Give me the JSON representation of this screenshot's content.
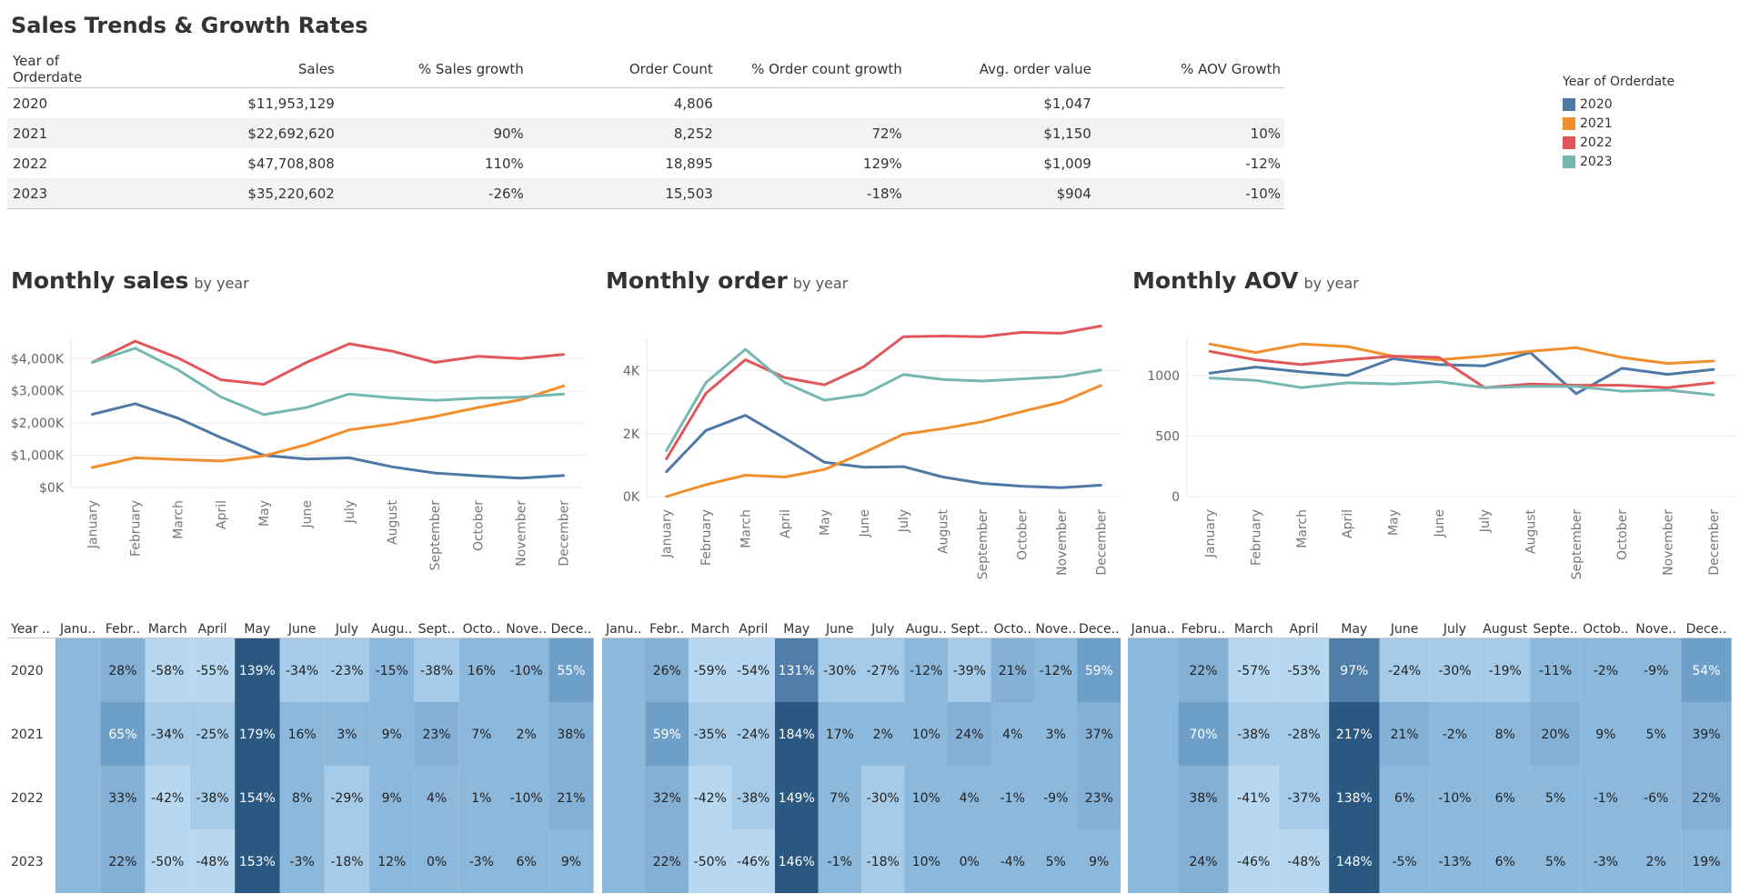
{
  "title": "Sales Trends & Growth Rates",
  "table": {
    "columns": [
      "Year of Orderdate",
      "Sales",
      "% Sales growth",
      "Order Count",
      "% Order count growth",
      "Avg. order value",
      "% AOV Growth"
    ],
    "rows": [
      [
        "2020",
        "$11,953,129",
        "",
        "4,806",
        "",
        "$1,047",
        ""
      ],
      [
        "2021",
        "$22,692,620",
        "90%",
        "8,252",
        "72%",
        "$1,150",
        "10%"
      ],
      [
        "2022",
        "$47,708,808",
        "110%",
        "18,895",
        "129%",
        "$1,009",
        "-12%"
      ],
      [
        "2023",
        "$35,220,602",
        "-26%",
        "15,503",
        "-18%",
        "$904",
        "-10%"
      ]
    ]
  },
  "legend": {
    "title": "Year of Orderdate",
    "items": [
      {
        "label": "2020",
        "color": "#4e79a7"
      },
      {
        "label": "2021",
        "color": "#f28e2b"
      },
      {
        "label": "2022",
        "color": "#e15759"
      },
      {
        "label": "2023",
        "color": "#76b7b2"
      }
    ]
  },
  "months": [
    "January",
    "February",
    "March",
    "April",
    "May",
    "June",
    "July",
    "August",
    "September",
    "October",
    "November",
    "December"
  ],
  "charts": {
    "sales": {
      "title": "Monthly sales",
      "subtitle": "by year"
    },
    "orders": {
      "title": "Monthly order",
      "subtitle": "by year"
    },
    "aov": {
      "title": "Monthly AOV",
      "subtitle": "by year"
    }
  },
  "chart_data": [
    {
      "type": "line",
      "title": "Monthly sales",
      "subtitle": "by year",
      "x": [
        "January",
        "February",
        "March",
        "April",
        "May",
        "June",
        "July",
        "August",
        "September",
        "October",
        "November",
        "December"
      ],
      "ylim": [
        0,
        4600
      ],
      "yticks": [
        {
          "v": 0,
          "label": "$0K"
        },
        {
          "v": 1000,
          "label": "$1,000K"
        },
        {
          "v": 2000,
          "label": "$2,000K"
        },
        {
          "v": 3000,
          "label": "$3,000K"
        },
        {
          "v": 4000,
          "label": "$4,000K"
        }
      ],
      "series": [
        {
          "name": "2020",
          "color": "#4e79a7",
          "values": [
            2270,
            2600,
            2150,
            1550,
            1000,
            880,
            920,
            640,
            450,
            360,
            290,
            370
          ]
        },
        {
          "name": "2021",
          "color": "#f28e2b",
          "values": [
            620,
            920,
            870,
            820,
            980,
            1330,
            1790,
            1970,
            2200,
            2480,
            2720,
            3150
          ]
        },
        {
          "name": "2022",
          "color": "#e15759",
          "values": [
            3880,
            4540,
            4020,
            3340,
            3200,
            3880,
            4460,
            4230,
            3880,
            4070,
            4000,
            4130
          ]
        },
        {
          "name": "2023",
          "color": "#76b7b2",
          "values": [
            3880,
            4320,
            3650,
            2810,
            2260,
            2480,
            2900,
            2780,
            2700,
            2770,
            2800,
            2900
          ]
        }
      ]
    },
    {
      "type": "line",
      "title": "Monthly order",
      "subtitle": "by year",
      "x": [
        "January",
        "February",
        "March",
        "April",
        "May",
        "June",
        "July",
        "August",
        "September",
        "October",
        "November",
        "December"
      ],
      "ylim": [
        0,
        5000
      ],
      "yticks": [
        {
          "v": 0,
          "label": "0K"
        },
        {
          "v": 2000,
          "label": "2K"
        },
        {
          "v": 4000,
          "label": "4K"
        }
      ],
      "series": [
        {
          "name": "2020",
          "color": "#4e79a7",
          "values": [
            790,
            2100,
            2580,
            1850,
            1090,
            930,
            950,
            620,
            420,
            330,
            280,
            360
          ]
        },
        {
          "name": "2021",
          "color": "#f28e2b",
          "values": [
            0,
            380,
            680,
            620,
            860,
            1400,
            1980,
            2160,
            2380,
            2700,
            3000,
            3530
          ]
        },
        {
          "name": "2022",
          "color": "#e15759",
          "values": [
            1200,
            3280,
            4350,
            3780,
            3550,
            4130,
            5080,
            5100,
            5080,
            5220,
            5190,
            5420
          ]
        },
        {
          "name": "2023",
          "color": "#76b7b2",
          "values": [
            1460,
            3620,
            4680,
            3620,
            3060,
            3240,
            3880,
            3720,
            3670,
            3740,
            3810,
            4020
          ]
        }
      ]
    },
    {
      "type": "line",
      "title": "Monthly AOV",
      "subtitle": "by year",
      "x": [
        "January",
        "February",
        "March",
        "April",
        "May",
        "June",
        "July",
        "August",
        "September",
        "October",
        "November",
        "December"
      ],
      "ylim": [
        0,
        1300
      ],
      "yticks": [
        {
          "v": 0,
          "label": "0"
        },
        {
          "v": 500,
          "label": "500"
        },
        {
          "v": 1000,
          "label": "1000"
        }
      ],
      "series": [
        {
          "name": "2020",
          "color": "#4e79a7",
          "values": [
            1020,
            1070,
            1030,
            1000,
            1140,
            1090,
            1080,
            1190,
            850,
            1060,
            1010,
            1050
          ]
        },
        {
          "name": "2021",
          "color": "#f28e2b",
          "values": [
            1260,
            1190,
            1260,
            1240,
            1160,
            1130,
            1160,
            1200,
            1230,
            1150,
            1100,
            1120
          ]
        },
        {
          "name": "2022",
          "color": "#e15759",
          "values": [
            1200,
            1130,
            1090,
            1130,
            1160,
            1150,
            900,
            930,
            920,
            920,
            900,
            940
          ]
        },
        {
          "name": "2023",
          "color": "#76b7b2",
          "values": [
            980,
            960,
            900,
            940,
            930,
            950,
            900,
            910,
            910,
            870,
            880,
            840
          ]
        }
      ]
    },
    {
      "type": "heatmap",
      "name": "sales-growth",
      "row_header": "Year ..",
      "columns": [
        "Janu..",
        "Febr..",
        "March",
        "April",
        "May",
        "June",
        "July",
        "Augu..",
        "Sept..",
        "Octo..",
        "Nove..",
        "Dece.."
      ],
      "rows": [
        "2020",
        "2021",
        "2022",
        "2023"
      ],
      "values": [
        [
          null,
          28,
          -58,
          -55,
          139,
          -34,
          -23,
          -15,
          -38,
          16,
          -10,
          55
        ],
        [
          null,
          65,
          -34,
          -25,
          179,
          16,
          3,
          9,
          23,
          7,
          2,
          38
        ],
        [
          null,
          33,
          -42,
          -38,
          154,
          8,
          -29,
          9,
          4,
          1,
          -10,
          21
        ],
        [
          null,
          22,
          -50,
          -48,
          153,
          -3,
          -18,
          12,
          0,
          -3,
          6,
          9
        ]
      ]
    },
    {
      "type": "heatmap",
      "name": "order-growth",
      "columns": [
        "Janu..",
        "Febr..",
        "March",
        "April",
        "May",
        "June",
        "July",
        "Augu..",
        "Sept..",
        "Octo..",
        "Nove..",
        "Dece.."
      ],
      "rows": [
        "2020",
        "2021",
        "2022",
        "2023"
      ],
      "values": [
        [
          null,
          26,
          -59,
          -54,
          131,
          -30,
          -27,
          -12,
          -39,
          21,
          -12,
          59
        ],
        [
          null,
          59,
          -35,
          -24,
          184,
          17,
          2,
          10,
          24,
          4,
          3,
          37
        ],
        [
          null,
          32,
          -42,
          -38,
          149,
          7,
          -30,
          10,
          4,
          -1,
          -9,
          23
        ],
        [
          null,
          22,
          -50,
          -46,
          146,
          -1,
          -18,
          10,
          0,
          -4,
          5,
          9
        ]
      ]
    },
    {
      "type": "heatmap",
      "name": "aov-growth",
      "columns": [
        "Janua..",
        "Febru..",
        "March",
        "April",
        "May",
        "June",
        "July",
        "August",
        "Septe..",
        "Octob..",
        "Nove..",
        "Dece.."
      ],
      "rows": [
        "2020",
        "2021",
        "2022",
        "2023"
      ],
      "values": [
        [
          null,
          22,
          -57,
          -53,
          97,
          -24,
          -30,
          -19,
          -11,
          -2,
          -9,
          54
        ],
        [
          null,
          70,
          -38,
          -28,
          217,
          21,
          -2,
          8,
          20,
          9,
          5,
          39
        ],
        [
          null,
          38,
          -41,
          -37,
          138,
          6,
          -10,
          6,
          5,
          -1,
          -6,
          22
        ],
        [
          null,
          24,
          -46,
          -48,
          148,
          -5,
          -13,
          6,
          5,
          -3,
          2,
          19
        ]
      ]
    }
  ]
}
